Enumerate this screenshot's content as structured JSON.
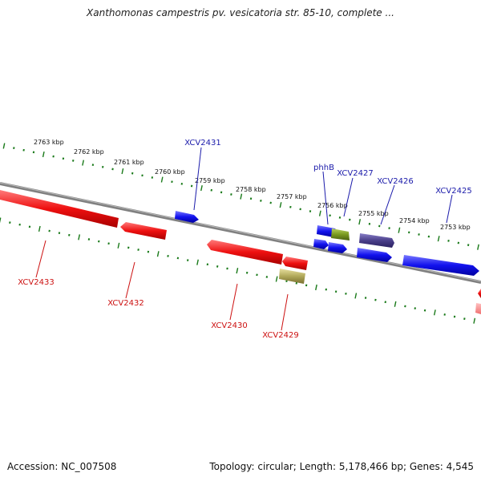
{
  "title": "Xanthomonas campestris pv. vesicatoria str. 85-10, complete ...",
  "footer": {
    "accession": "Accession: NC_007508",
    "stats": "Topology: circular; Length: 5,178,466 bp; Genes: 4,545"
  },
  "scale_labels": [
    "2763 kbp",
    "2762 kbp",
    "2761 kbp",
    "2760 kbp",
    "2759 kbp",
    "2758 kbp",
    "2757 kbp",
    "2756 kbp",
    "2755 kbp",
    "2754 kbp",
    "2753 kbp"
  ],
  "gene_labels_forward": [
    "XCV2431",
    "phhB",
    "XCV2427",
    "XCV2426",
    "XCV2425"
  ],
  "gene_labels_reverse": [
    "XCV2433",
    "XCV2432",
    "XCV2430",
    "XCV2429"
  ],
  "colors": {
    "forward_gene": "#1010ee",
    "reverse_gene": "#e01010",
    "backbone": "#808080",
    "tick": "#1a7a1a",
    "forward_label": "#1a1aaa",
    "reverse_label": "#cc1010",
    "olive_gene": "#7a9a20",
    "khaki_gene": "#b0a85a",
    "purple_gene": "#4a3f8a"
  }
}
